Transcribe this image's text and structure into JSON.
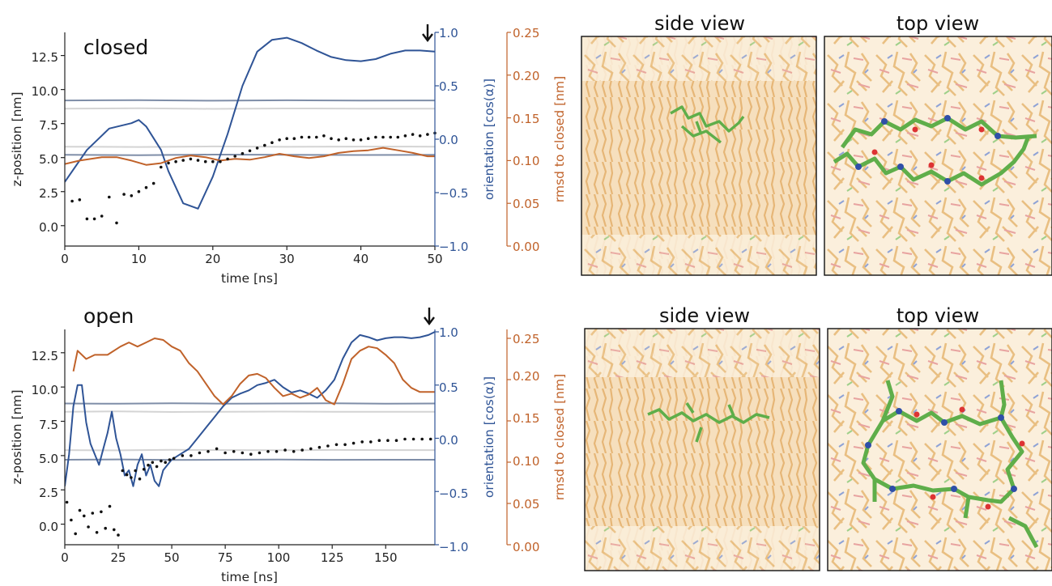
{
  "colors": {
    "orientation": "#2f5496",
    "rmsd": "#c0622a",
    "membrane_dark": "#7f8ea8",
    "membrane_light": "#d4d4d4",
    "zpos": "#111111",
    "peptide": "#5fae4a",
    "lipid": "#f0cfa0"
  },
  "chart_data": [
    {
      "type": "line",
      "title": "closed",
      "xlabel": "time [ns]",
      "ylabel": "z-position [nm]",
      "ylabel_right1": "orientation [cos(α)]",
      "ylabel_right2": "rmsd to closed [nm]",
      "xlim": [
        0,
        50
      ],
      "ylim": [
        -1.5,
        14.2
      ],
      "xticks": [
        "0",
        "10",
        "20",
        "30",
        "40",
        "50"
      ],
      "yticks": [
        "0.0",
        "2.5",
        "5.0",
        "7.5",
        "10.0",
        "12.5"
      ],
      "right1_ticks": [
        "−1.0",
        "−0.5",
        "0.0",
        "0.5",
        "1.0"
      ],
      "right2_ticks": [
        "0.00",
        "0.05",
        "0.10",
        "0.15",
        "0.20",
        "0.25"
      ],
      "series": [
        {
          "key": "membrane_outer_top",
          "x": [
            0,
            10,
            20,
            30,
            40,
            50
          ],
          "values": [
            9.2,
            9.22,
            9.18,
            9.21,
            9.19,
            9.2
          ]
        },
        {
          "key": "membrane_inner_top",
          "x": [
            0,
            10,
            20,
            30,
            40,
            50
          ],
          "values": [
            8.6,
            8.62,
            8.58,
            8.61,
            8.6,
            8.6
          ]
        },
        {
          "key": "membrane_inner_bottom",
          "x": [
            0,
            10,
            20,
            30,
            40,
            50
          ],
          "values": [
            5.8,
            5.78,
            5.82,
            5.79,
            5.81,
            5.8
          ]
        },
        {
          "key": "membrane_outer_bottom",
          "x": [
            0,
            10,
            20,
            30,
            40,
            50
          ],
          "values": [
            5.2,
            5.18,
            5.22,
            5.2,
            5.19,
            5.2
          ]
        },
        {
          "key": "orientation",
          "x": [
            0,
            3,
            6,
            9,
            10,
            11,
            13,
            14,
            16,
            18,
            20,
            22,
            24,
            26,
            28,
            30,
            32,
            34,
            36,
            38,
            40,
            42,
            44,
            46,
            48,
            50
          ],
          "values": [
            -0.4,
            -0.1,
            0.1,
            0.15,
            0.18,
            0.12,
            -0.1,
            -0.3,
            -0.6,
            -0.65,
            -0.35,
            0.05,
            0.5,
            0.82,
            0.93,
            0.95,
            0.9,
            0.83,
            0.77,
            0.74,
            0.73,
            0.75,
            0.8,
            0.83,
            0.83,
            0.82
          ]
        },
        {
          "key": "rmsd",
          "x": [
            0,
            2,
            5,
            7,
            9,
            11,
            13,
            15,
            17,
            19,
            21,
            23,
            25,
            27,
            29,
            31,
            33,
            35,
            37,
            39,
            41,
            43,
            45,
            47,
            49,
            50
          ],
          "values": [
            0.096,
            0.1,
            0.104,
            0.104,
            0.1,
            0.095,
            0.097,
            0.103,
            0.106,
            0.104,
            0.1,
            0.102,
            0.101,
            0.104,
            0.108,
            0.105,
            0.103,
            0.105,
            0.109,
            0.111,
            0.112,
            0.115,
            0.112,
            0.109,
            0.105,
            0.105
          ]
        },
        {
          "key": "zpos",
          "style": "dots",
          "x": [
            1,
            2,
            3,
            4,
            5,
            6,
            7,
            8,
            9,
            10,
            11,
            12,
            13,
            14,
            15,
            16,
            17,
            18,
            19,
            20,
            21,
            22,
            23,
            24,
            25,
            26,
            27,
            28,
            29,
            30,
            31,
            32,
            33,
            34,
            35,
            36,
            37,
            38,
            39,
            40,
            41,
            42,
            43,
            44,
            45,
            46,
            47,
            48,
            49,
            50
          ],
          "values": [
            1.8,
            1.9,
            0.5,
            0.5,
            0.7,
            2.1,
            0.2,
            2.3,
            2.2,
            2.5,
            2.8,
            3.1,
            4.3,
            4.6,
            4.7,
            4.8,
            4.9,
            4.8,
            4.7,
            4.7,
            4.7,
            4.9,
            5.1,
            5.3,
            5.5,
            5.7,
            5.9,
            6.1,
            6.3,
            6.4,
            6.4,
            6.5,
            6.5,
            6.5,
            6.6,
            6.4,
            6.3,
            6.4,
            6.3,
            6.3,
            6.4,
            6.5,
            6.5,
            6.5,
            6.5,
            6.6,
            6.7,
            6.6,
            6.7,
            6.8
          ]
        }
      ]
    },
    {
      "type": "line",
      "title": "open",
      "xlabel": "time [ns]",
      "ylabel": "z-position [nm]",
      "ylabel_right1": "orientation [cos(α)]",
      "ylabel_right2": "rmsd to closed [nm]",
      "xlim": [
        0,
        173
      ],
      "ylim": [
        -1.5,
        14.2
      ],
      "xticks": [
        "0",
        "25",
        "50",
        "75",
        "100",
        "125",
        "150"
      ],
      "yticks": [
        "0.0",
        "2.5",
        "5.0",
        "7.5",
        "10.0",
        "12.5"
      ],
      "right1_ticks": [
        "−1.0",
        "−0.5",
        "0.0",
        "0.5",
        "1.0"
      ],
      "right2_ticks": [
        "0.00",
        "0.05",
        "0.10",
        "0.15",
        "0.20",
        "0.25"
      ],
      "series": [
        {
          "key": "membrane_outer_top",
          "x": [
            0,
            25,
            50,
            75,
            100,
            125,
            150,
            173
          ],
          "values": [
            8.8,
            8.78,
            8.82,
            8.79,
            8.8,
            8.81,
            8.79,
            8.8
          ]
        },
        {
          "key": "membrane_inner_top",
          "x": [
            0,
            25,
            50,
            75,
            100,
            125,
            150,
            173
          ],
          "values": [
            8.2,
            8.22,
            8.18,
            8.2,
            8.21,
            8.19,
            8.2,
            8.2
          ]
        },
        {
          "key": "membrane_inner_bottom",
          "x": [
            0,
            25,
            50,
            75,
            100,
            125,
            150,
            173
          ],
          "values": [
            5.4,
            5.38,
            5.42,
            5.4,
            5.39,
            5.41,
            5.4,
            5.4
          ]
        },
        {
          "key": "membrane_outer_bottom",
          "x": [
            0,
            25,
            50,
            75,
            100,
            125,
            150,
            173
          ],
          "values": [
            4.7,
            4.72,
            4.68,
            4.7,
            4.71,
            4.69,
            4.7,
            4.7
          ]
        },
        {
          "key": "orientation",
          "x": [
            0,
            2,
            4,
            6,
            8,
            10,
            12,
            14,
            16,
            18,
            20,
            22,
            24,
            26,
            28,
            30,
            32,
            34,
            36,
            38,
            40,
            42,
            44,
            46,
            48,
            50,
            54,
            58,
            62,
            66,
            70,
            74,
            78,
            82,
            86,
            90,
            94,
            98,
            102,
            106,
            110,
            114,
            118,
            122,
            126,
            130,
            134,
            138,
            142,
            146,
            150,
            154,
            158,
            162,
            166,
            170,
            173
          ],
          "values": [
            -0.45,
            -0.15,
            0.3,
            0.5,
            0.5,
            0.15,
            -0.05,
            -0.15,
            -0.25,
            -0.1,
            0.05,
            0.25,
            0.0,
            -0.15,
            -0.35,
            -0.3,
            -0.45,
            -0.25,
            -0.15,
            -0.35,
            -0.25,
            -0.4,
            -0.45,
            -0.3,
            -0.25,
            -0.2,
            -0.15,
            -0.1,
            0.0,
            0.1,
            0.2,
            0.3,
            0.38,
            0.42,
            0.45,
            0.5,
            0.52,
            0.55,
            0.48,
            0.43,
            0.45,
            0.42,
            0.38,
            0.45,
            0.55,
            0.75,
            0.9,
            0.97,
            0.95,
            0.92,
            0.94,
            0.95,
            0.95,
            0.94,
            0.95,
            0.97,
            1.0
          ]
        },
        {
          "key": "rmsd",
          "x": [
            4,
            6,
            10,
            14,
            20,
            26,
            30,
            34,
            38,
            42,
            46,
            50,
            54,
            58,
            62,
            66,
            70,
            74,
            78,
            82,
            86,
            90,
            94,
            98,
            102,
            106,
            110,
            114,
            118,
            122,
            126,
            130,
            134,
            138,
            142,
            146,
            150,
            154,
            158,
            162,
            166,
            170,
            173
          ],
          "values": [
            0.21,
            0.235,
            0.225,
            0.23,
            0.23,
            0.24,
            0.245,
            0.24,
            0.245,
            0.25,
            0.248,
            0.24,
            0.235,
            0.22,
            0.21,
            0.195,
            0.18,
            0.17,
            0.18,
            0.195,
            0.205,
            0.207,
            0.202,
            0.19,
            0.18,
            0.183,
            0.178,
            0.182,
            0.19,
            0.175,
            0.17,
            0.195,
            0.225,
            0.235,
            0.24,
            0.238,
            0.23,
            0.22,
            0.2,
            0.19,
            0.185,
            0.185,
            0.185
          ]
        },
        {
          "key": "zpos",
          "style": "dots",
          "x": [
            1,
            3,
            5,
            7,
            9,
            11,
            13,
            15,
            17,
            19,
            21,
            23,
            25,
            27,
            29,
            31,
            33,
            35,
            37,
            39,
            41,
            43,
            45,
            47,
            49,
            51,
            55,
            59,
            63,
            67,
            71,
            75,
            79,
            83,
            87,
            91,
            95,
            99,
            103,
            107,
            111,
            115,
            119,
            123,
            127,
            131,
            135,
            139,
            143,
            147,
            151,
            155,
            159,
            163,
            167,
            171
          ],
          "values": [
            1.6,
            0.3,
            -0.7,
            1.0,
            0.6,
            -0.2,
            0.8,
            -0.6,
            0.9,
            -0.3,
            1.3,
            -0.4,
            -0.8,
            3.9,
            3.6,
            3.4,
            3.9,
            3.3,
            4.0,
            4.3,
            4.5,
            4.2,
            4.6,
            4.5,
            4.7,
            4.8,
            5.0,
            5.0,
            5.2,
            5.3,
            5.5,
            5.2,
            5.3,
            5.2,
            5.1,
            5.2,
            5.3,
            5.3,
            5.4,
            5.3,
            5.4,
            5.5,
            5.6,
            5.7,
            5.8,
            5.8,
            5.9,
            6.0,
            6.0,
            6.1,
            6.1,
            6.1,
            6.2,
            6.2,
            6.2,
            6.2
          ]
        }
      ]
    }
  ],
  "views": {
    "top_left_title": "side view",
    "top_right_title": "top view",
    "bottom_left_title": "side view",
    "bottom_right_title": "top view"
  }
}
